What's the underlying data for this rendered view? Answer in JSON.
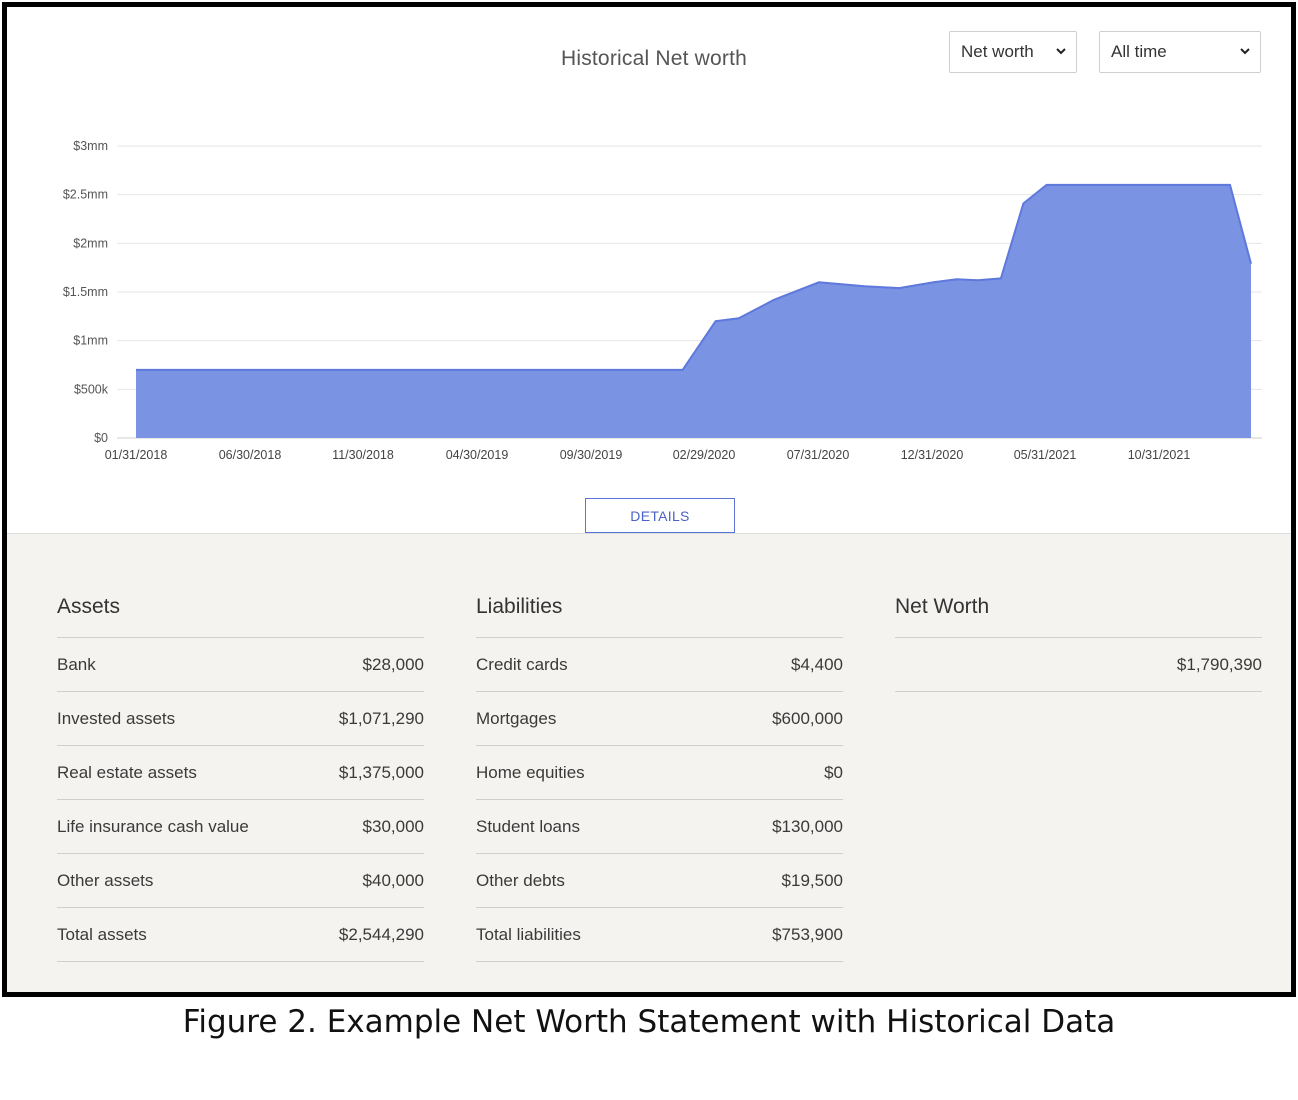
{
  "header": {
    "title": "Historical Net worth",
    "metric_select": "Net worth",
    "range_select": "All time",
    "details_label": "DETAILS"
  },
  "colors": {
    "area_fill": "#7b93e3",
    "area_stroke": "#5e78dc",
    "accent": "#4a62c9"
  },
  "chart_data": {
    "type": "area",
    "title": "Historical Net worth",
    "xlabel": "",
    "ylabel": "",
    "y_ticks": [
      "$0",
      "$500k",
      "$1mm",
      "$1.5mm",
      "$2mm",
      "$2.5mm",
      "$3mm"
    ],
    "ylim": [
      0,
      3000000
    ],
    "x_ticks": [
      "01/31/2018",
      "06/30/2018",
      "11/30/2018",
      "04/30/2019",
      "09/30/2019",
      "02/29/2020",
      "07/31/2020",
      "12/31/2020",
      "05/31/2021",
      "10/31/2021"
    ],
    "xlim": [
      "2018-01-31",
      "2022-02-28"
    ],
    "grid": true,
    "series": [
      {
        "values": [
          [
            "2018-01-31",
            700000
          ],
          [
            "2020-01-31",
            700000
          ],
          [
            "2020-03-15",
            1200000
          ],
          [
            "2020-04-15",
            1230000
          ],
          [
            "2020-06-01",
            1420000
          ],
          [
            "2020-07-31",
            1600000
          ],
          [
            "2020-09-30",
            1560000
          ],
          [
            "2020-11-15",
            1540000
          ],
          [
            "2020-12-31",
            1600000
          ],
          [
            "2021-01-31",
            1630000
          ],
          [
            "2021-02-28",
            1620000
          ],
          [
            "2021-03-31",
            1640000
          ],
          [
            "2021-04-30",
            2410000
          ],
          [
            "2021-05-31",
            2600000
          ],
          [
            "2021-12-31",
            2600000
          ],
          [
            "2022-01-31",
            2600000
          ],
          [
            "2022-02-28",
            1790390
          ]
        ]
      }
    ]
  },
  "assets": {
    "heading": "Assets",
    "rows": [
      {
        "label": "Bank",
        "value": "$28,000"
      },
      {
        "label": "Invested assets",
        "value": "$1,071,290"
      },
      {
        "label": "Real estate assets",
        "value": "$1,375,000"
      },
      {
        "label": "Life insurance cash value",
        "value": "$30,000"
      },
      {
        "label": "Other assets",
        "value": "$40,000"
      },
      {
        "label": "Total assets",
        "value": "$2,544,290"
      }
    ]
  },
  "liabilities": {
    "heading": "Liabilities",
    "rows": [
      {
        "label": "Credit cards",
        "value": "$4,400"
      },
      {
        "label": "Mortgages",
        "value": "$600,000"
      },
      {
        "label": "Home equities",
        "value": "$0"
      },
      {
        "label": "Student loans",
        "value": "$130,000"
      },
      {
        "label": "Other debts",
        "value": "$19,500"
      },
      {
        "label": "Total liabilities",
        "value": "$753,900"
      }
    ]
  },
  "net_worth": {
    "heading": "Net Worth",
    "value": "$1,790,390"
  },
  "caption": "Figure 2.  Example Net Worth Statement with Historical Data"
}
